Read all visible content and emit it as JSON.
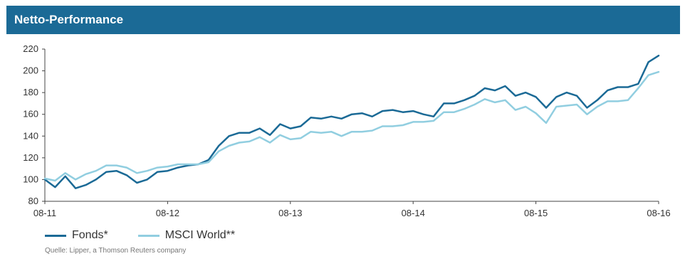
{
  "header": {
    "title": "Netto-Performance"
  },
  "chart_data": {
    "type": "line",
    "title": "Netto-Performance",
    "xlabel": "",
    "ylabel": "",
    "ylim": [
      80,
      220
    ],
    "yticks": [
      "80",
      "100",
      "120",
      "140",
      "160",
      "180",
      "200",
      "220"
    ],
    "xticks": [
      "08-11",
      "08-12",
      "08-13",
      "08-14",
      "08-15",
      "08-16"
    ],
    "grid": false,
    "legend_position": "bottom-left",
    "series": [
      {
        "name": "Fonds*",
        "color": "#1b6a96",
        "values": [
          100,
          93,
          103,
          92,
          95,
          100,
          107,
          108,
          104,
          97,
          100,
          107,
          108,
          111,
          113,
          114,
          118,
          131,
          140,
          143,
          143,
          147,
          141,
          151,
          147,
          149,
          157,
          156,
          158,
          156,
          160,
          161,
          158,
          163,
          164,
          162,
          163,
          160,
          158,
          170,
          170,
          173,
          177,
          184,
          182,
          186,
          177,
          180,
          176,
          166,
          176,
          180,
          177,
          166,
          173,
          182,
          185,
          185,
          188,
          208,
          214
        ]
      },
      {
        "name": "MSCI World**",
        "color": "#91cee0",
        "values": [
          101,
          99,
          106,
          100,
          105,
          108,
          113,
          113,
          111,
          106,
          108,
          111,
          112,
          114,
          114,
          114,
          116,
          126,
          131,
          134,
          135,
          139,
          134,
          141,
          137,
          138,
          144,
          143,
          144,
          140,
          144,
          144,
          145,
          149,
          149,
          150,
          153,
          153,
          154,
          162,
          162,
          165,
          169,
          174,
          171,
          173,
          164,
          167,
          161,
          152,
          167,
          168,
          169,
          160,
          167,
          172,
          172,
          173,
          184,
          196,
          199
        ]
      }
    ]
  },
  "source": "Quelle: Lipper, a Thomson Reuters company"
}
